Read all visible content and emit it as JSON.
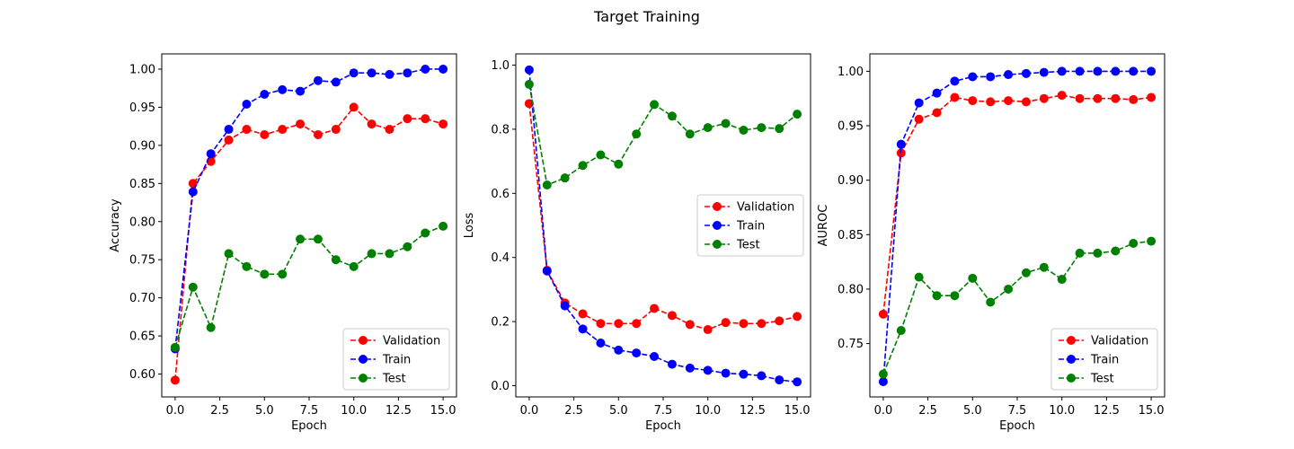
{
  "figure": {
    "title": "Target Training"
  },
  "chart_data": [
    {
      "type": "line",
      "xlabel": "Epoch",
      "ylabel": "Accuracy",
      "xlim": [
        -0.75,
        15.75
      ],
      "ylim": [
        0.57,
        1.02
      ],
      "xticks": [
        0.0,
        2.5,
        5.0,
        7.5,
        10.0,
        12.5,
        15.0
      ],
      "xtick_labels": [
        "0.0",
        "2.5",
        "5.0",
        "7.5",
        "10.0",
        "12.5",
        "15.0"
      ],
      "yticks": [
        0.6,
        0.65,
        0.7,
        0.75,
        0.8,
        0.85,
        0.9,
        0.95,
        1.0
      ],
      "ytick_labels": [
        "0.60",
        "0.65",
        "0.70",
        "0.75",
        "0.80",
        "0.85",
        "0.90",
        "0.95",
        "1.00"
      ],
      "legend_position": "lower-right",
      "x": [
        0,
        1,
        2,
        3,
        4,
        5,
        6,
        7,
        8,
        9,
        10,
        11,
        12,
        13,
        14,
        15
      ],
      "series": [
        {
          "name": "Validation",
          "color": "#ff0000",
          "values": [
            0.592,
            0.85,
            0.879,
            0.907,
            0.921,
            0.914,
            0.921,
            0.928,
            0.914,
            0.921,
            0.95,
            0.928,
            0.921,
            0.935,
            0.935,
            0.928
          ]
        },
        {
          "name": "Train",
          "color": "#0000ff",
          "values": [
            0.633,
            0.839,
            0.889,
            0.921,
            0.954,
            0.967,
            0.973,
            0.971,
            0.985,
            0.983,
            0.995,
            0.995,
            0.993,
            0.995,
            1.0,
            1.0
          ]
        },
        {
          "name": "Test",
          "color": "#008000",
          "values": [
            0.635,
            0.714,
            0.661,
            0.758,
            0.741,
            0.731,
            0.731,
            0.777,
            0.777,
            0.75,
            0.741,
            0.758,
            0.758,
            0.767,
            0.785,
            0.794
          ]
        }
      ]
    },
    {
      "type": "line",
      "xlabel": "Epoch",
      "ylabel": "Loss",
      "xlim": [
        -0.75,
        15.75
      ],
      "ylim": [
        -0.035,
        1.035
      ],
      "xticks": [
        0.0,
        2.5,
        5.0,
        7.5,
        10.0,
        12.5,
        15.0
      ],
      "xtick_labels": [
        "0.0",
        "2.5",
        "5.0",
        "7.5",
        "10.0",
        "12.5",
        "15.0"
      ],
      "yticks": [
        0.0,
        0.2,
        0.4,
        0.6,
        0.8,
        1.0
      ],
      "ytick_labels": [
        "0.0",
        "0.2",
        "0.4",
        "0.6",
        "0.8",
        "1.0"
      ],
      "legend_position": "center-right",
      "x": [
        0,
        1,
        2,
        3,
        4,
        5,
        6,
        7,
        8,
        9,
        10,
        11,
        12,
        13,
        14,
        15
      ],
      "series": [
        {
          "name": "Validation",
          "color": "#ff0000",
          "values": [
            0.88,
            0.36,
            0.258,
            0.224,
            0.194,
            0.194,
            0.194,
            0.241,
            0.219,
            0.191,
            0.175,
            0.197,
            0.194,
            0.194,
            0.202,
            0.216
          ]
        },
        {
          "name": "Train",
          "color": "#0000ff",
          "values": [
            0.985,
            0.358,
            0.249,
            0.177,
            0.133,
            0.111,
            0.102,
            0.091,
            0.067,
            0.055,
            0.048,
            0.039,
            0.036,
            0.031,
            0.018,
            0.012
          ]
        },
        {
          "name": "Test",
          "color": "#008000",
          "values": [
            0.94,
            0.626,
            0.648,
            0.687,
            0.72,
            0.691,
            0.785,
            0.877,
            0.841,
            0.785,
            0.805,
            0.818,
            0.797,
            0.805,
            0.802,
            0.847
          ]
        }
      ]
    },
    {
      "type": "line",
      "xlabel": "Epoch",
      "ylabel": "AUROC",
      "xlim": [
        -0.75,
        15.75
      ],
      "ylim": [
        0.701,
        1.016
      ],
      "xticks": [
        0.0,
        2.5,
        5.0,
        7.5,
        10.0,
        12.5,
        15.0
      ],
      "xtick_labels": [
        "0.0",
        "2.5",
        "5.0",
        "7.5",
        "10.0",
        "12.5",
        "15.0"
      ],
      "yticks": [
        0.75,
        0.8,
        0.85,
        0.9,
        0.95,
        1.0
      ],
      "ytick_labels": [
        "0.75",
        "0.80",
        "0.85",
        "0.90",
        "0.95",
        "1.00"
      ],
      "legend_position": "lower-right",
      "x": [
        0,
        1,
        2,
        3,
        4,
        5,
        6,
        7,
        8,
        9,
        10,
        11,
        12,
        13,
        14,
        15
      ],
      "series": [
        {
          "name": "Validation",
          "color": "#ff0000",
          "values": [
            0.777,
            0.925,
            0.956,
            0.962,
            0.976,
            0.973,
            0.972,
            0.973,
            0.972,
            0.975,
            0.978,
            0.975,
            0.975,
            0.975,
            0.974,
            0.976
          ]
        },
        {
          "name": "Train",
          "color": "#0000ff",
          "values": [
            0.715,
            0.933,
            0.971,
            0.98,
            0.991,
            0.995,
            0.995,
            0.997,
            0.998,
            0.999,
            1.0,
            1.0,
            1.0,
            1.0,
            1.0,
            1.0
          ]
        },
        {
          "name": "Test",
          "color": "#008000",
          "values": [
            0.722,
            0.762,
            0.811,
            0.794,
            0.794,
            0.81,
            0.788,
            0.8,
            0.815,
            0.82,
            0.809,
            0.833,
            0.833,
            0.835,
            0.842,
            0.844
          ]
        }
      ]
    }
  ]
}
